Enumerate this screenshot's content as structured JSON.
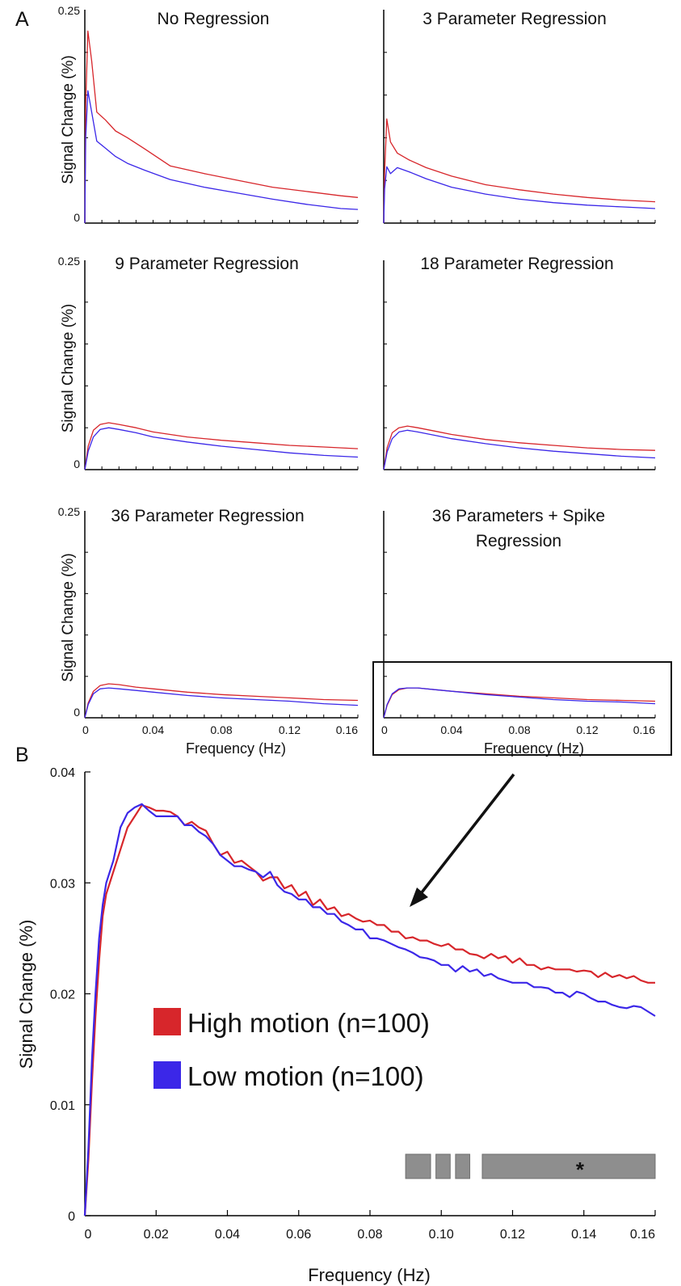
{
  "figure": {
    "panel_a_label": "A",
    "panel_b_label": "B",
    "colors": {
      "high": "#d7262b",
      "low": "#3b27e8",
      "sig_bar": "#8e8e8e",
      "axis": "#000000"
    },
    "sig_marker": "*"
  },
  "chart_data": [
    {
      "type": "line",
      "panel": "A1",
      "title": "No Regression",
      "ylabel": "Signal Change (%)",
      "xlabel": "",
      "ylim": [
        0,
        0.25
      ],
      "xlim": [
        0,
        0.16
      ],
      "ytick_labels": [
        "0.25",
        "0"
      ],
      "xtick_labels": [],
      "series": [
        {
          "name": "High motion (n=100)",
          "x": [
            0,
            0.0005,
            0.0018,
            0.004,
            0.007,
            0.012,
            0.018,
            0.025,
            0.035,
            0.05,
            0.07,
            0.09,
            0.11,
            0.13,
            0.15,
            0.16
          ],
          "values": [
            0,
            0.14,
            0.225,
            0.19,
            0.13,
            0.121,
            0.108,
            0.1,
            0.087,
            0.067,
            0.058,
            0.05,
            0.042,
            0.037,
            0.032,
            0.03
          ]
        },
        {
          "name": "Low motion (n=100)",
          "x": [
            0,
            0.0005,
            0.0018,
            0.004,
            0.007,
            0.012,
            0.018,
            0.025,
            0.035,
            0.05,
            0.07,
            0.09,
            0.11,
            0.13,
            0.15,
            0.16
          ],
          "values": [
            0,
            0.1,
            0.155,
            0.13,
            0.096,
            0.088,
            0.078,
            0.07,
            0.062,
            0.051,
            0.042,
            0.035,
            0.028,
            0.022,
            0.017,
            0.016
          ]
        }
      ]
    },
    {
      "type": "line",
      "panel": "A2",
      "title": "3 Parameter Regression",
      "ylabel": "",
      "xlabel": "",
      "ylim": [
        0,
        0.25
      ],
      "xlim": [
        0,
        0.16
      ],
      "ytick_labels": [],
      "xtick_labels": [],
      "series": [
        {
          "name": "High motion (n=100)",
          "x": [
            0,
            0.0005,
            0.0018,
            0.004,
            0.008,
            0.015,
            0.025,
            0.04,
            0.06,
            0.08,
            0.1,
            0.12,
            0.14,
            0.16
          ],
          "values": [
            0,
            0.06,
            0.122,
            0.095,
            0.082,
            0.074,
            0.065,
            0.055,
            0.045,
            0.039,
            0.034,
            0.03,
            0.027,
            0.025
          ]
        },
        {
          "name": "Low motion (n=100)",
          "x": [
            0,
            0.0005,
            0.0018,
            0.004,
            0.008,
            0.015,
            0.025,
            0.04,
            0.06,
            0.08,
            0.1,
            0.12,
            0.14,
            0.16
          ],
          "values": [
            0,
            0.04,
            0.066,
            0.058,
            0.065,
            0.06,
            0.052,
            0.042,
            0.034,
            0.028,
            0.024,
            0.021,
            0.019,
            0.017
          ]
        }
      ]
    },
    {
      "type": "line",
      "panel": "A3",
      "title": "9 Parameter Regression",
      "ylabel": "Signal Change (%)",
      "xlabel": "",
      "ylim": [
        0,
        0.25
      ],
      "xlim": [
        0,
        0.16
      ],
      "ytick_labels": [
        "0.25",
        "0"
      ],
      "xtick_labels": [],
      "series": [
        {
          "name": "High motion (n=100)",
          "x": [
            0,
            0.002,
            0.005,
            0.009,
            0.014,
            0.02,
            0.03,
            0.04,
            0.06,
            0.08,
            0.1,
            0.12,
            0.14,
            0.16
          ],
          "values": [
            0,
            0.028,
            0.047,
            0.054,
            0.056,
            0.054,
            0.05,
            0.045,
            0.039,
            0.035,
            0.032,
            0.029,
            0.027,
            0.025
          ]
        },
        {
          "name": "Low motion (n=100)",
          "x": [
            0,
            0.002,
            0.005,
            0.009,
            0.014,
            0.02,
            0.03,
            0.04,
            0.06,
            0.08,
            0.1,
            0.12,
            0.14,
            0.16
          ],
          "values": [
            0,
            0.022,
            0.039,
            0.048,
            0.05,
            0.048,
            0.044,
            0.039,
            0.033,
            0.028,
            0.024,
            0.02,
            0.017,
            0.015
          ]
        }
      ]
    },
    {
      "type": "line",
      "panel": "A4",
      "title": "18 Parameter Regression",
      "ylabel": "",
      "xlabel": "",
      "ylim": [
        0,
        0.25
      ],
      "xlim": [
        0,
        0.16
      ],
      "ytick_labels": [],
      "xtick_labels": [],
      "series": [
        {
          "name": "High motion (n=100)",
          "x": [
            0,
            0.002,
            0.005,
            0.009,
            0.014,
            0.02,
            0.03,
            0.04,
            0.06,
            0.08,
            0.1,
            0.12,
            0.14,
            0.16
          ],
          "values": [
            0,
            0.026,
            0.044,
            0.05,
            0.052,
            0.05,
            0.046,
            0.042,
            0.036,
            0.032,
            0.029,
            0.026,
            0.024,
            0.023
          ]
        },
        {
          "name": "Low motion (n=100)",
          "x": [
            0,
            0.002,
            0.005,
            0.009,
            0.014,
            0.02,
            0.03,
            0.04,
            0.06,
            0.08,
            0.1,
            0.12,
            0.14,
            0.16
          ],
          "values": [
            0,
            0.021,
            0.037,
            0.045,
            0.047,
            0.045,
            0.041,
            0.037,
            0.031,
            0.026,
            0.022,
            0.019,
            0.016,
            0.014
          ]
        }
      ]
    },
    {
      "type": "line",
      "panel": "A5",
      "title": "36 Parameter Regression",
      "ylabel": "Signal Change (%)",
      "xlabel": "Frequency (Hz)",
      "ylim": [
        0,
        0.25
      ],
      "xlim": [
        0,
        0.16
      ],
      "ytick_labels": [
        "0.25",
        "0"
      ],
      "xtick_labels": [
        "0",
        "0.04",
        "0.08",
        "0.12",
        "0.16"
      ],
      "series": [
        {
          "name": "High motion (n=100)",
          "x": [
            0,
            0.002,
            0.005,
            0.009,
            0.014,
            0.02,
            0.03,
            0.04,
            0.06,
            0.08,
            0.1,
            0.12,
            0.14,
            0.16
          ],
          "values": [
            0,
            0.018,
            0.032,
            0.039,
            0.041,
            0.04,
            0.037,
            0.035,
            0.031,
            0.028,
            0.026,
            0.024,
            0.022,
            0.021
          ]
        },
        {
          "name": "Low motion (n=100)",
          "x": [
            0,
            0.002,
            0.005,
            0.009,
            0.014,
            0.02,
            0.03,
            0.04,
            0.06,
            0.08,
            0.1,
            0.12,
            0.14,
            0.16
          ],
          "values": [
            0,
            0.016,
            0.029,
            0.035,
            0.036,
            0.035,
            0.033,
            0.031,
            0.027,
            0.024,
            0.022,
            0.02,
            0.017,
            0.015
          ]
        }
      ]
    },
    {
      "type": "line",
      "panel": "A6",
      "title": "36 Parameters + Spike\nRegression",
      "ylabel": "",
      "xlabel": "Frequency (Hz)",
      "ylim": [
        0,
        0.25
      ],
      "xlim": [
        0,
        0.16
      ],
      "ytick_labels": [],
      "xtick_labels": [
        "0",
        "0.04",
        "0.08",
        "0.12",
        "0.16"
      ],
      "series": [
        {
          "name": "High motion (n=100)",
          "x": [
            0,
            0.002,
            0.005,
            0.009,
            0.014,
            0.02,
            0.03,
            0.04,
            0.06,
            0.08,
            0.1,
            0.12,
            0.14,
            0.16
          ],
          "values": [
            0,
            0.015,
            0.028,
            0.034,
            0.036,
            0.036,
            0.034,
            0.032,
            0.029,
            0.026,
            0.024,
            0.022,
            0.021,
            0.02
          ]
        },
        {
          "name": "Low motion (n=100)",
          "x": [
            0,
            0.002,
            0.005,
            0.009,
            0.014,
            0.02,
            0.03,
            0.04,
            0.06,
            0.08,
            0.1,
            0.12,
            0.14,
            0.16
          ],
          "values": [
            0,
            0.016,
            0.029,
            0.035,
            0.036,
            0.036,
            0.034,
            0.032,
            0.028,
            0.025,
            0.022,
            0.02,
            0.019,
            0.017
          ]
        }
      ]
    },
    {
      "type": "line",
      "panel": "B",
      "title": "",
      "ylabel": "Signal Change (%)",
      "xlabel": "Frequency (Hz)",
      "ylim": [
        0,
        0.04
      ],
      "xlim": [
        0,
        0.16
      ],
      "ytick_labels": [
        "0",
        "0.01",
        "0.02",
        "0.03",
        "0.04"
      ],
      "xtick_labels": [
        "0",
        "0.02",
        "0.04",
        "0.06",
        "0.08",
        "0.10",
        "0.12",
        "0.14",
        "0.16"
      ],
      "legend": "center-left",
      "series": [
        {
          "name": "High motion (n=100)",
          "x": [
            0,
            0.001,
            0.002,
            0.003,
            0.004,
            0.005,
            0.006,
            0.008,
            0.01,
            0.012,
            0.014,
            0.016,
            0.017,
            0.018,
            0.02,
            0.022,
            0.024,
            0.026,
            0.028,
            0.03,
            0.032,
            0.034,
            0.036,
            0.038,
            0.04,
            0.042,
            0.044,
            0.046,
            0.048,
            0.05,
            0.052,
            0.054,
            0.056,
            0.058,
            0.06,
            0.062,
            0.064,
            0.066,
            0.068,
            0.07,
            0.072,
            0.074,
            0.076,
            0.078,
            0.08,
            0.082,
            0.084,
            0.086,
            0.088,
            0.09,
            0.092,
            0.094,
            0.096,
            0.098,
            0.1,
            0.102,
            0.104,
            0.106,
            0.108,
            0.11,
            0.112,
            0.114,
            0.116,
            0.118,
            0.12,
            0.122,
            0.124,
            0.126,
            0.128,
            0.13,
            0.132,
            0.134,
            0.136,
            0.138,
            0.14,
            0.142,
            0.144,
            0.146,
            0.148,
            0.15,
            0.152,
            0.154,
            0.156,
            0.158,
            0.16
          ],
          "values": [
            0.0,
            0.005,
            0.012,
            0.018,
            0.023,
            0.027,
            0.029,
            0.031,
            0.033,
            0.035,
            0.036,
            0.037,
            0.0369,
            0.0368,
            0.0365,
            0.0365,
            0.0364,
            0.036,
            0.0352,
            0.0355,
            0.035,
            0.0347,
            0.0335,
            0.0325,
            0.0328,
            0.0318,
            0.032,
            0.0315,
            0.031,
            0.0302,
            0.0305,
            0.0305,
            0.0295,
            0.0298,
            0.0288,
            0.0292,
            0.028,
            0.0285,
            0.0276,
            0.0278,
            0.027,
            0.0272,
            0.0268,
            0.0265,
            0.0266,
            0.0262,
            0.0262,
            0.0256,
            0.0256,
            0.025,
            0.0251,
            0.0248,
            0.0248,
            0.0245,
            0.0243,
            0.0245,
            0.024,
            0.024,
            0.0236,
            0.0235,
            0.0232,
            0.0236,
            0.0232,
            0.0234,
            0.0228,
            0.0232,
            0.0226,
            0.0226,
            0.0222,
            0.0224,
            0.0222,
            0.0222,
            0.0222,
            0.022,
            0.0221,
            0.022,
            0.0215,
            0.0219,
            0.0215,
            0.0217,
            0.0214,
            0.0216,
            0.0212,
            0.021,
            0.021
          ]
        },
        {
          "name": "Low motion (n=100)",
          "x": [
            0,
            0.001,
            0.002,
            0.003,
            0.004,
            0.005,
            0.006,
            0.008,
            0.01,
            0.012,
            0.014,
            0.016,
            0.017,
            0.018,
            0.02,
            0.022,
            0.024,
            0.026,
            0.028,
            0.03,
            0.032,
            0.034,
            0.036,
            0.038,
            0.04,
            0.042,
            0.044,
            0.046,
            0.048,
            0.05,
            0.052,
            0.054,
            0.056,
            0.058,
            0.06,
            0.062,
            0.064,
            0.066,
            0.068,
            0.07,
            0.072,
            0.074,
            0.076,
            0.078,
            0.08,
            0.082,
            0.084,
            0.086,
            0.088,
            0.09,
            0.092,
            0.094,
            0.096,
            0.098,
            0.1,
            0.102,
            0.104,
            0.106,
            0.108,
            0.11,
            0.112,
            0.114,
            0.116,
            0.118,
            0.12,
            0.122,
            0.124,
            0.126,
            0.128,
            0.13,
            0.132,
            0.134,
            0.136,
            0.138,
            0.14,
            0.142,
            0.144,
            0.146,
            0.148,
            0.15,
            0.152,
            0.154,
            0.156,
            0.158,
            0.16
          ],
          "values": [
            0.0,
            0.006,
            0.014,
            0.02,
            0.025,
            0.028,
            0.03,
            0.032,
            0.035,
            0.0363,
            0.0368,
            0.0371,
            0.0368,
            0.0365,
            0.036,
            0.036,
            0.036,
            0.036,
            0.0352,
            0.0352,
            0.0346,
            0.0342,
            0.0335,
            0.0325,
            0.032,
            0.0315,
            0.0315,
            0.0312,
            0.031,
            0.0305,
            0.031,
            0.0298,
            0.0292,
            0.029,
            0.0285,
            0.0285,
            0.0278,
            0.0278,
            0.0272,
            0.0272,
            0.0265,
            0.0262,
            0.0258,
            0.0258,
            0.025,
            0.025,
            0.0248,
            0.0245,
            0.0242,
            0.024,
            0.0237,
            0.0233,
            0.0232,
            0.023,
            0.0226,
            0.0226,
            0.022,
            0.0225,
            0.022,
            0.0222,
            0.0216,
            0.0218,
            0.0214,
            0.0212,
            0.021,
            0.021,
            0.021,
            0.0206,
            0.0206,
            0.0205,
            0.0201,
            0.0201,
            0.0197,
            0.0202,
            0.02,
            0.0196,
            0.0193,
            0.0193,
            0.019,
            0.0188,
            0.0187,
            0.0189,
            0.0188,
            0.0184,
            0.018
          ]
        }
      ],
      "significance_bars": [
        [
          0.09,
          0.097
        ],
        [
          0.0985,
          0.1025
        ],
        [
          0.104,
          0.108
        ],
        [
          0.1115,
          0.16
        ]
      ]
    }
  ]
}
